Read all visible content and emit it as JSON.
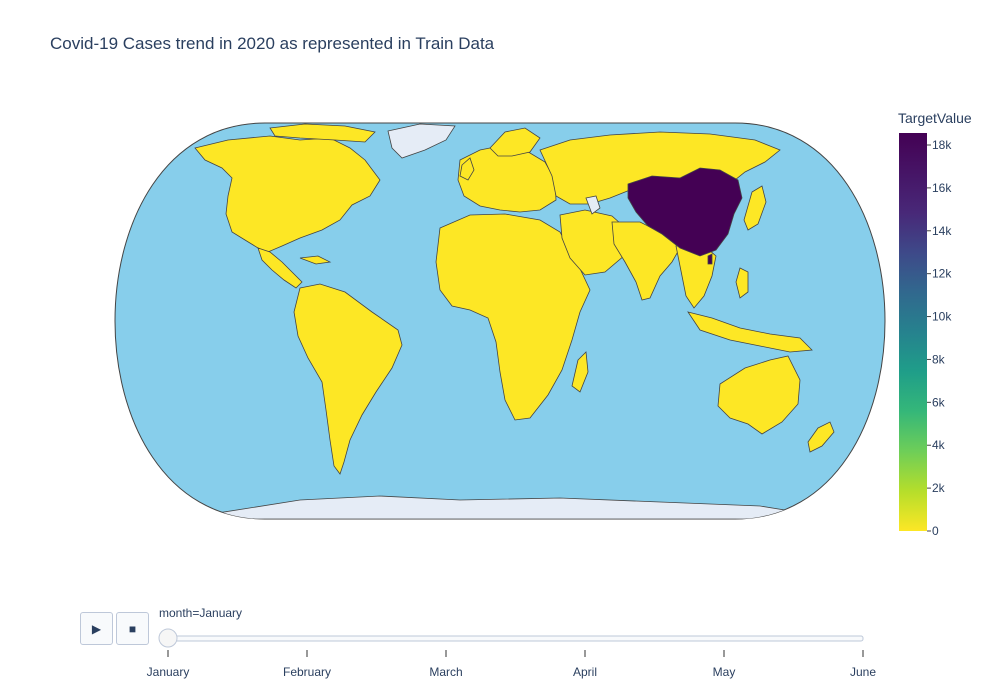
{
  "title": "Covid-19 Cases trend in 2020 as represented in Train Data",
  "colors": {
    "ocean": "#87ceeb",
    "land_low": "#fde725",
    "land_high": "#440154",
    "no_data": "#e5ecf6",
    "border": "#444444"
  },
  "colorbar": {
    "title": "TargetValue",
    "ticks": [
      "18k",
      "16k",
      "14k",
      "12k",
      "10k",
      "8k",
      "6k",
      "4k",
      "2k",
      "0"
    ],
    "scale": "viridis (reversed)",
    "range": [
      0,
      18500
    ]
  },
  "map_data": {
    "projection": "natural earth",
    "highlighted_country": "China",
    "highlighted_value_approx": 18000,
    "other_countries_value": 0
  },
  "animation": {
    "play_icon": "play-icon",
    "stop_icon": "stop-icon",
    "current_label": "month=January",
    "steps": [
      "January",
      "February",
      "March",
      "April",
      "May",
      "June"
    ],
    "current_step": "January"
  }
}
